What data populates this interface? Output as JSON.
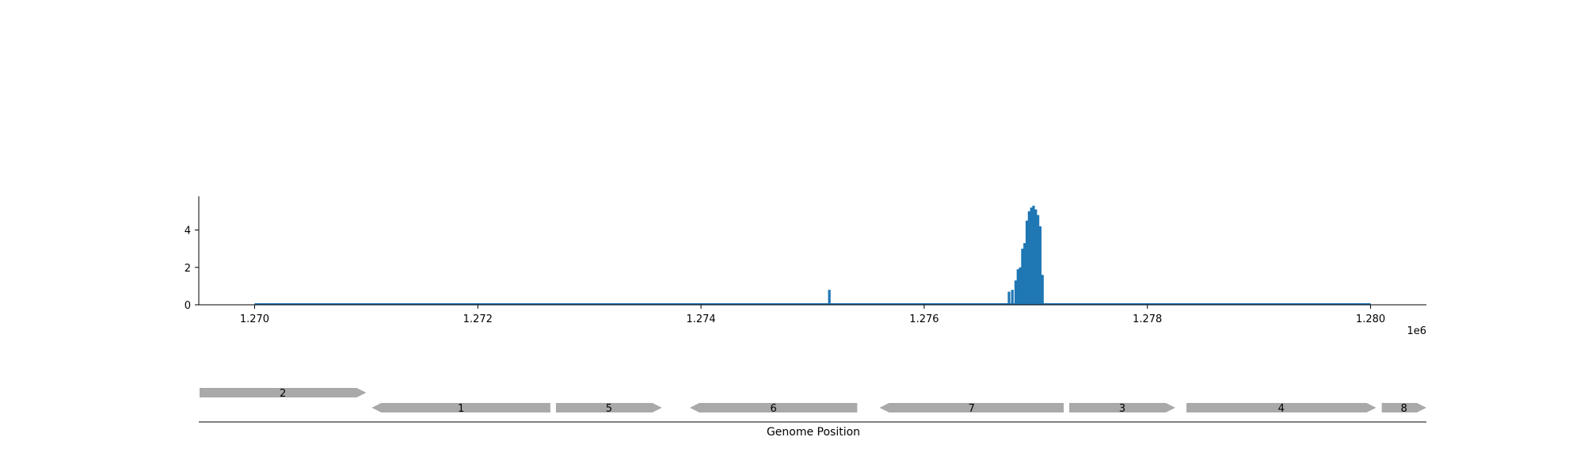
{
  "chart_data": [
    {
      "type": "area",
      "title": "",
      "xlabel": "",
      "ylabel": "",
      "x_offset_label": "1e6",
      "xlim": [
        1269500,
        1280500
      ],
      "ylim": [
        0,
        5.8
      ],
      "xticks": [
        1270000,
        1272000,
        1274000,
        1276000,
        1278000,
        1280000
      ],
      "xtick_labels": [
        "1.270",
        "1.272",
        "1.274",
        "1.276",
        "1.278",
        "1.280"
      ],
      "yticks": [
        0,
        2,
        4
      ],
      "ytick_labels": [
        "0",
        "2",
        "4"
      ],
      "grid": false,
      "color": "#1f77b4",
      "coverage_range": [
        1270000,
        1280000
      ],
      "series": [
        {
          "x": [
            1275150,
            1276760,
            1276790,
            1276820,
            1276840,
            1276860,
            1276880,
            1276900,
            1276920,
            1276940,
            1276960,
            1276980,
            1277000,
            1277020,
            1277040,
            1277060
          ],
          "values": [
            0.8,
            0.7,
            0.8,
            1.3,
            1.9,
            2.0,
            3.0,
            3.3,
            4.5,
            5.0,
            5.2,
            5.3,
            5.1,
            4.8,
            4.2,
            1.6
          ]
        }
      ]
    },
    {
      "type": "gene-track",
      "xlabel": "Genome Position",
      "xlim": [
        1269500,
        1280500
      ],
      "genes": [
        {
          "label": "2",
          "start": 1269500,
          "end": 1271000,
          "strand": "+",
          "row": 0
        },
        {
          "label": "1",
          "start": 1271050,
          "end": 1272650,
          "strand": "-",
          "row": 1
        },
        {
          "label": "5",
          "start": 1272700,
          "end": 1273650,
          "strand": "+",
          "row": 1
        },
        {
          "label": "6",
          "start": 1273900,
          "end": 1275400,
          "strand": "-",
          "row": 1
        },
        {
          "label": "7",
          "start": 1275600,
          "end": 1277250,
          "strand": "-",
          "row": 1
        },
        {
          "label": "3",
          "start": 1277300,
          "end": 1278250,
          "strand": "+",
          "row": 1
        },
        {
          "label": "4",
          "start": 1278350,
          "end": 1280050,
          "strand": "+",
          "row": 1
        },
        {
          "label": "8",
          "start": 1280100,
          "end": 1280500,
          "strand": "+",
          "row": 1
        }
      ]
    }
  ]
}
